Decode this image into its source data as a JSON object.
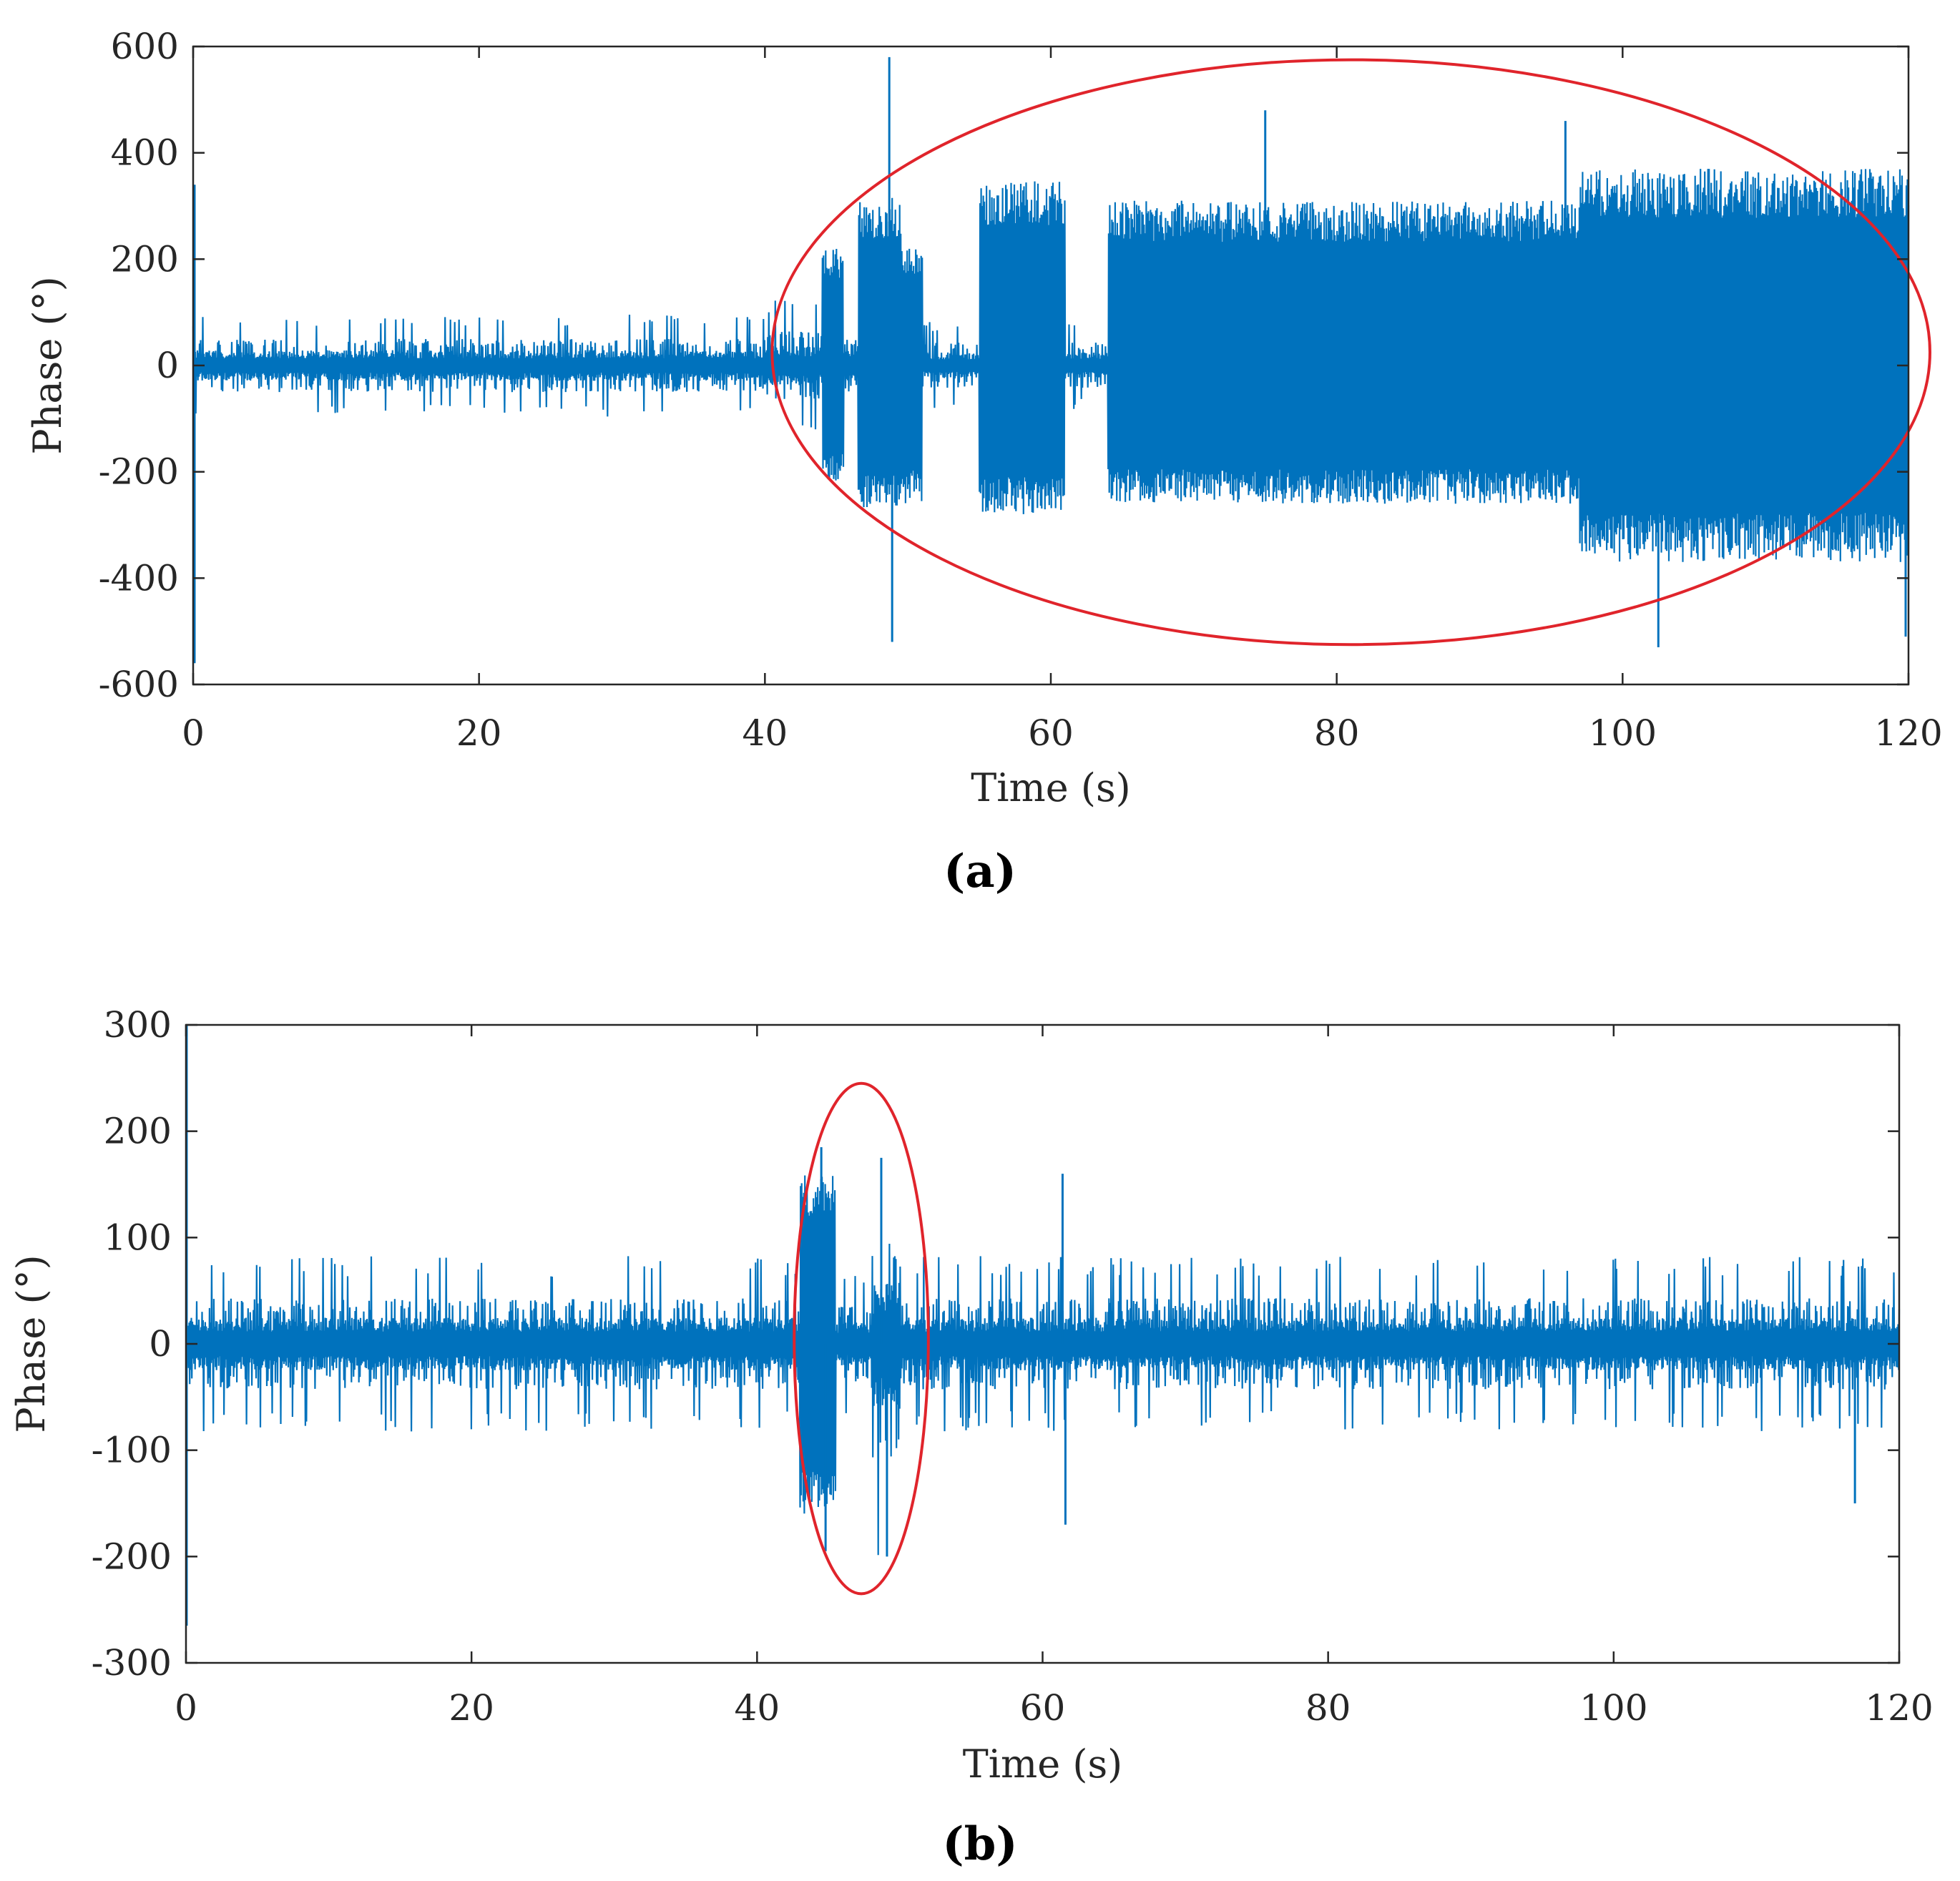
{
  "colors": {
    "signal": "#0072BD",
    "annotation": "#E0242B",
    "axis": "#262626"
  },
  "chart_data": [
    {
      "type": "line",
      "caption": "(a)",
      "xlabel": "Time (s)",
      "ylabel": "Phase (°)",
      "xlim": [
        0,
        120
      ],
      "ylim": [
        -600,
        600
      ],
      "xticks": [
        0,
        20,
        40,
        60,
        80,
        100,
        120
      ],
      "yticks": [
        600,
        400,
        200,
        0,
        -200,
        -400,
        -600
      ],
      "ytick_labels": [
        "600",
        "400",
        "200",
        "0",
        "-200",
        "-400",
        "-600"
      ],
      "grid": false,
      "envelope": {
        "description_units": "seconds, degrees",
        "segments": [
          {
            "x": [
              0,
              40
            ],
            "upper": 70,
            "lower": -70
          },
          {
            "x": [
              40,
              44
            ],
            "upper": 90,
            "lower": -90
          },
          {
            "x": [
              44,
              45.5
            ],
            "upper": 220,
            "lower": -220
          },
          {
            "x": [
              45.5,
              46.5
            ],
            "upper": 70,
            "lower": -70
          },
          {
            "x": [
              46.5,
              49.5
            ],
            "upper": 320,
            "lower": -270
          },
          {
            "x": [
              49.5,
              51
            ],
            "upper": 220,
            "lower": -260
          },
          {
            "x": [
              51,
              55
            ],
            "upper": 60,
            "lower": -60
          },
          {
            "x": [
              55,
              61
            ],
            "upper": 350,
            "lower": -280
          },
          {
            "x": [
              61,
              64
            ],
            "upper": 60,
            "lower": -60
          },
          {
            "x": [
              64,
              97
            ],
            "upper": 310,
            "lower": -260
          },
          {
            "x": [
              97,
              120
            ],
            "upper": 370,
            "lower": -370
          }
        ],
        "spikes": [
          {
            "x": 48.7,
            "y": 580
          },
          {
            "x": 48.9,
            "y": -520
          },
          {
            "x": 75,
            "y": 480
          },
          {
            "x": 96,
            "y": 460
          },
          {
            "x": 102.5,
            "y": -530
          },
          {
            "x": 119.8,
            "y": -510
          },
          {
            "x": 0.1,
            "y": 340
          },
          {
            "x": 0.1,
            "y": -560
          }
        ]
      },
      "annotation_ellipse": {
        "cx": 81,
        "cy": 25,
        "rx": 40.5,
        "ry": 550
      }
    },
    {
      "type": "line",
      "caption": "(b)",
      "xlabel": "Time (s)",
      "ylabel": "Phase (°)",
      "xlim": [
        0,
        120
      ],
      "ylim": [
        -300,
        300
      ],
      "xticks": [
        0,
        20,
        40,
        60,
        80,
        100,
        120
      ],
      "yticks": [
        300,
        200,
        100,
        0,
        -100,
        -200,
        -300
      ],
      "ytick_labels": [
        "300",
        "200",
        "100",
        "0",
        "-100",
        "-200",
        "-300"
      ],
      "grid": false,
      "envelope": {
        "description_units": "seconds, degrees",
        "segments": [
          {
            "x": [
              0,
              43
            ],
            "upper": 60,
            "lower": -60
          },
          {
            "x": [
              43,
              45.5
            ],
            "upper": 160,
            "lower": -160
          },
          {
            "x": [
              45.5,
              48
            ],
            "upper": 50,
            "lower": -50
          },
          {
            "x": [
              48,
              50
            ],
            "upper": 140,
            "lower": -150
          },
          {
            "x": [
              50,
              120
            ],
            "upper": 60,
            "lower": -60
          }
        ],
        "spikes": [
          {
            "x": 0.05,
            "y": 300
          },
          {
            "x": 0.05,
            "y": -265
          },
          {
            "x": 44.5,
            "y": 185
          },
          {
            "x": 44.8,
            "y": -195
          },
          {
            "x": 48.7,
            "y": 175
          },
          {
            "x": 49.1,
            "y": -200
          },
          {
            "x": 61.4,
            "y": 160
          },
          {
            "x": 61.6,
            "y": -170
          },
          {
            "x": 116.9,
            "y": -150
          }
        ]
      },
      "annotation_ellipse": {
        "cx": 47.3,
        "cy": 5,
        "rx": 4.7,
        "ry": 240
      }
    }
  ]
}
